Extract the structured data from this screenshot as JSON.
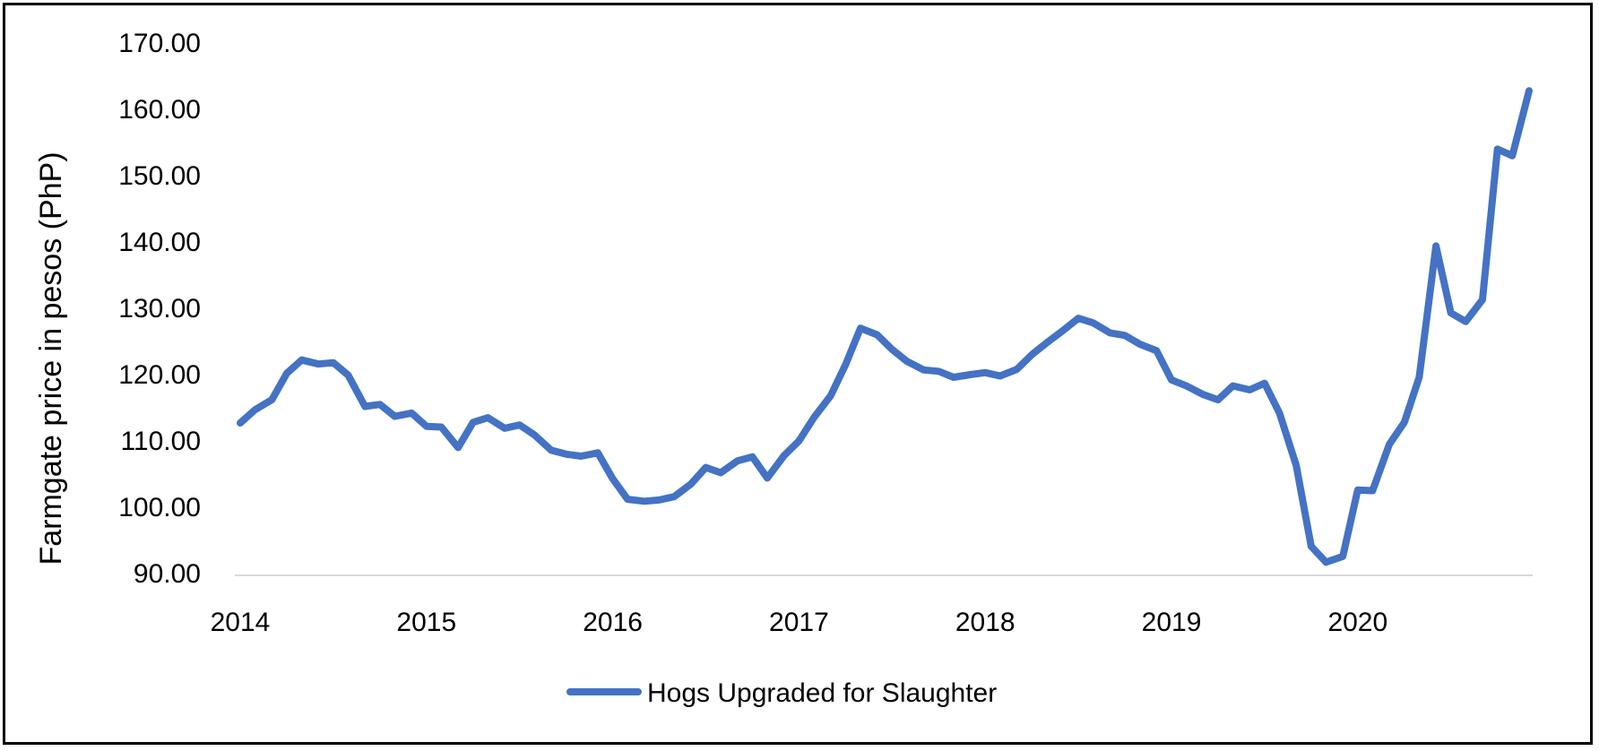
{
  "chart_data": {
    "type": "line",
    "title": "",
    "xlabel": "",
    "ylabel": "Farmgate price in pesos (PhP)",
    "ylim": [
      90,
      170
    ],
    "yticks": [
      "90.00",
      "100.00",
      "110.00",
      "120.00",
      "130.00",
      "140.00",
      "150.00",
      "160.00",
      "170.00"
    ],
    "xlim": [
      2014,
      2020.92
    ],
    "xticks": [
      "2014",
      "2015",
      "2016",
      "2017",
      "2018",
      "2019",
      "2020"
    ],
    "grid": false,
    "legend": "bottom",
    "line_color": "#4472C4",
    "series": [
      {
        "name": "Hogs Upgraded for Slaughter",
        "points": [
          [
            2014.0,
            112.7
          ],
          [
            2014.08,
            114.7
          ],
          [
            2014.17,
            116.2
          ],
          [
            2014.25,
            120.2
          ],
          [
            2014.33,
            122.2
          ],
          [
            2014.42,
            121.6
          ],
          [
            2014.5,
            121.8
          ],
          [
            2014.58,
            119.9
          ],
          [
            2014.67,
            115.2
          ],
          [
            2014.75,
            115.5
          ],
          [
            2014.83,
            113.7
          ],
          [
            2014.92,
            114.2
          ],
          [
            2015.0,
            112.2
          ],
          [
            2015.08,
            112.1
          ],
          [
            2015.17,
            109.0
          ],
          [
            2015.25,
            112.8
          ],
          [
            2015.33,
            113.5
          ],
          [
            2015.42,
            111.9
          ],
          [
            2015.5,
            112.4
          ],
          [
            2015.58,
            110.9
          ],
          [
            2015.67,
            108.6
          ],
          [
            2015.75,
            108.0
          ],
          [
            2015.83,
            107.7
          ],
          [
            2015.92,
            108.2
          ],
          [
            2016.0,
            104.3
          ],
          [
            2016.08,
            101.2
          ],
          [
            2016.17,
            100.9
          ],
          [
            2016.25,
            101.1
          ],
          [
            2016.33,
            101.6
          ],
          [
            2016.42,
            103.5
          ],
          [
            2016.5,
            106.0
          ],
          [
            2016.58,
            105.2
          ],
          [
            2016.67,
            107.0
          ],
          [
            2016.75,
            107.6
          ],
          [
            2016.83,
            104.4
          ],
          [
            2016.92,
            107.8
          ],
          [
            2017.0,
            110.0
          ],
          [
            2017.08,
            113.5
          ],
          [
            2017.17,
            116.8
          ],
          [
            2017.25,
            121.5
          ],
          [
            2017.33,
            127.0
          ],
          [
            2017.42,
            126.0
          ],
          [
            2017.5,
            123.8
          ],
          [
            2017.58,
            122.0
          ],
          [
            2017.67,
            120.7
          ],
          [
            2017.75,
            120.5
          ],
          [
            2017.83,
            119.6
          ],
          [
            2017.92,
            120.0
          ],
          [
            2018.0,
            120.3
          ],
          [
            2018.08,
            119.8
          ],
          [
            2018.17,
            120.8
          ],
          [
            2018.25,
            123.0
          ],
          [
            2018.33,
            124.8
          ],
          [
            2018.42,
            126.7
          ],
          [
            2018.5,
            128.5
          ],
          [
            2018.58,
            127.8
          ],
          [
            2018.67,
            126.3
          ],
          [
            2018.75,
            125.9
          ],
          [
            2018.83,
            124.6
          ],
          [
            2018.92,
            123.6
          ],
          [
            2019.0,
            119.2
          ],
          [
            2019.08,
            118.3
          ],
          [
            2019.17,
            117.0
          ],
          [
            2019.25,
            116.2
          ],
          [
            2019.33,
            118.3
          ],
          [
            2019.42,
            117.7
          ],
          [
            2019.5,
            118.7
          ],
          [
            2019.58,
            114.2
          ],
          [
            2019.67,
            106.3
          ],
          [
            2019.75,
            94.1
          ],
          [
            2019.83,
            91.7
          ],
          [
            2019.92,
            92.6
          ],
          [
            2020.0,
            102.6
          ],
          [
            2020.08,
            102.5
          ],
          [
            2020.17,
            109.5
          ],
          [
            2020.25,
            112.8
          ],
          [
            2020.33,
            119.6
          ],
          [
            2020.42,
            139.4
          ],
          [
            2020.5,
            129.3
          ],
          [
            2020.58,
            128.0
          ],
          [
            2020.67,
            131.3
          ],
          [
            2020.75,
            154.0
          ],
          [
            2020.83,
            153.0
          ],
          [
            2020.92,
            162.8
          ]
        ]
      }
    ]
  }
}
